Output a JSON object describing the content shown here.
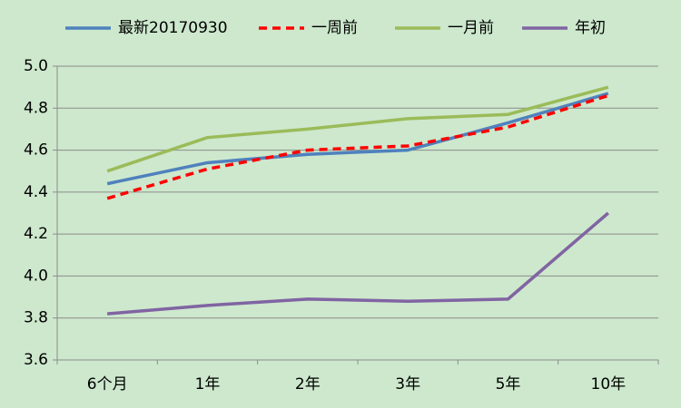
{
  "chart_data": {
    "type": "line",
    "categories": [
      "6个月",
      "1年",
      "2年",
      "3年",
      "5年",
      "10年"
    ],
    "series": [
      {
        "name": "最新20170930",
        "color": "#4f81bd",
        "linestyle": "solid",
        "values": [
          4.44,
          4.54,
          4.58,
          4.6,
          4.73,
          4.87
        ]
      },
      {
        "name": "一周前",
        "color": "#ff0000",
        "linestyle": "dashed",
        "values": [
          4.37,
          4.51,
          4.6,
          4.62,
          4.71,
          4.86
        ]
      },
      {
        "name": "一月前",
        "color": "#9bbb59",
        "linestyle": "solid",
        "values": [
          4.5,
          4.66,
          4.7,
          4.75,
          4.77,
          4.9
        ]
      },
      {
        "name": "年初",
        "color": "#8064a2",
        "linestyle": "solid",
        "values": [
          3.82,
          3.86,
          3.89,
          3.88,
          3.89,
          4.3
        ]
      }
    ],
    "ylim": [
      3.6,
      5.0
    ],
    "yticks": [
      3.6,
      3.8,
      {
        "value": 4.0,
        "label": "4.0"
      },
      4.2,
      4.4,
      4.6,
      4.8,
      {
        "value": 5.0,
        "label": "5.0"
      }
    ],
    "grid": true,
    "legend": "top"
  }
}
